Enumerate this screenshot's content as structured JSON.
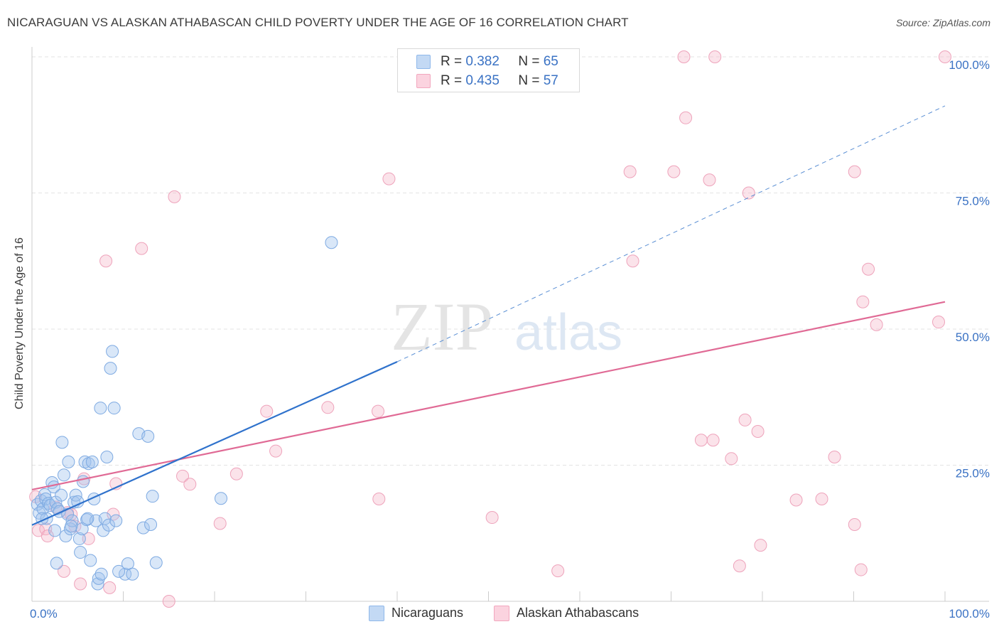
{
  "title": "NICARAGUAN VS ALASKAN ATHABASCAN CHILD POVERTY UNDER THE AGE OF 16 CORRELATION CHART",
  "source": "Source: ZipAtlas.com",
  "watermark": {
    "zip": "ZIP",
    "atlas": "atlas"
  },
  "legend_top": [
    {
      "r_label": "R =",
      "r_value": "0.382",
      "n_label": "N =",
      "n_value": "65"
    },
    {
      "r_label": "R =",
      "r_value": "0.435",
      "n_label": "N =",
      "n_value": "57"
    }
  ],
  "legend_bottom": [
    {
      "label": "Nicaraguans"
    },
    {
      "label": "Alaskan Athabascans"
    }
  ],
  "chart_data": {
    "type": "scatter",
    "title": "NICARAGUAN VS ALASKAN ATHABASCAN CHILD POVERTY UNDER THE AGE OF 16 CORRELATION CHART",
    "xlabel": "",
    "ylabel": "Child Poverty Under the Age of 16",
    "xlim": [
      0,
      100
    ],
    "ylim": [
      0,
      100
    ],
    "x_tick_labels": [
      "0.0%",
      "100.0%"
    ],
    "y_tick_labels": [
      "25.0%",
      "50.0%",
      "75.0%",
      "100.0%"
    ],
    "y_ticks": [
      25,
      50,
      75,
      100
    ],
    "colors": {
      "Nicaraguans": "#8fb8ea",
      "Alaskan Athabascans": "#f2a7be",
      "blue_line": "#2f72cc",
      "pink_line": "#e06a95"
    },
    "series": [
      {
        "name": "Nicaraguans",
        "R": 0.382,
        "N": 65,
        "trend": {
          "x0": 0,
          "y0": 14.0,
          "x1": 40,
          "y1": 44.0,
          "dash_to_x": 100,
          "dash_to_y": 91.0
        },
        "points": [
          [
            0.6,
            17.8
          ],
          [
            0.8,
            16.2
          ],
          [
            1.0,
            18.5
          ],
          [
            1.2,
            17.0
          ],
          [
            1.4,
            19.6
          ],
          [
            1.5,
            18.8
          ],
          [
            1.6,
            15.2
          ],
          [
            1.8,
            18.0
          ],
          [
            2.0,
            17.6
          ],
          [
            2.2,
            21.8
          ],
          [
            2.4,
            21.0
          ],
          [
            2.5,
            13.0
          ],
          [
            2.6,
            18.2
          ],
          [
            2.8,
            17.0
          ],
          [
            3.0,
            16.5
          ],
          [
            3.2,
            19.5
          ],
          [
            3.3,
            29.2
          ],
          [
            3.5,
            23.2
          ],
          [
            3.7,
            12.0
          ],
          [
            3.9,
            16.0
          ],
          [
            4.0,
            25.6
          ],
          [
            4.2,
            13.3
          ],
          [
            4.4,
            14.8
          ],
          [
            4.6,
            18.2
          ],
          [
            4.8,
            19.5
          ],
          [
            5.0,
            18.3
          ],
          [
            5.2,
            11.5
          ],
          [
            5.3,
            9.0
          ],
          [
            5.5,
            13.3
          ],
          [
            5.6,
            22.0
          ],
          [
            5.8,
            25.6
          ],
          [
            6.0,
            15.0
          ],
          [
            6.2,
            25.3
          ],
          [
            6.4,
            7.5
          ],
          [
            6.6,
            25.6
          ],
          [
            6.8,
            18.8
          ],
          [
            7.0,
            14.8
          ],
          [
            7.2,
            3.2
          ],
          [
            7.3,
            4.2
          ],
          [
            7.5,
            35.5
          ],
          [
            7.6,
            5.0
          ],
          [
            7.8,
            13.0
          ],
          [
            8.0,
            15.2
          ],
          [
            8.2,
            26.5
          ],
          [
            8.4,
            14.0
          ],
          [
            8.6,
            42.8
          ],
          [
            8.8,
            45.9
          ],
          [
            9.0,
            35.5
          ],
          [
            9.2,
            14.8
          ],
          [
            10.2,
            5.0
          ],
          [
            10.5,
            6.9
          ],
          [
            11.0,
            5.0
          ],
          [
            11.7,
            30.8
          ],
          [
            12.2,
            13.5
          ],
          [
            12.7,
            30.3
          ],
          [
            13.0,
            14.1
          ],
          [
            13.2,
            19.3
          ],
          [
            13.6,
            7.1
          ],
          [
            20.7,
            18.9
          ],
          [
            32.8,
            65.9
          ],
          [
            2.7,
            7.0
          ],
          [
            4.3,
            13.8
          ],
          [
            1.1,
            15.2
          ],
          [
            6.1,
            15.2
          ],
          [
            9.5,
            5.5
          ]
        ]
      },
      {
        "name": "Alaskan Athabascans",
        "R": 0.435,
        "N": 57,
        "trend": {
          "x0": 0,
          "y0": 20.5,
          "x1": 100,
          "y1": 55.0
        },
        "points": [
          [
            0.4,
            19.2
          ],
          [
            0.7,
            13.0
          ],
          [
            1.5,
            13.3
          ],
          [
            1.7,
            12.0
          ],
          [
            2.6,
            17.3
          ],
          [
            3.5,
            5.5
          ],
          [
            3.9,
            16.3
          ],
          [
            4.3,
            16.0
          ],
          [
            4.7,
            13.8
          ],
          [
            5.3,
            3.2
          ],
          [
            5.7,
            22.5
          ],
          [
            6.2,
            11.5
          ],
          [
            8.1,
            62.5
          ],
          [
            8.5,
            2.5
          ],
          [
            8.9,
            16.0
          ],
          [
            9.2,
            21.6
          ],
          [
            12.0,
            64.8
          ],
          [
            15.6,
            74.3
          ],
          [
            16.5,
            23.0
          ],
          [
            17.3,
            21.5
          ],
          [
            20.6,
            14.3
          ],
          [
            22.4,
            23.4
          ],
          [
            25.7,
            34.9
          ],
          [
            26.7,
            27.6
          ],
          [
            32.4,
            35.6
          ],
          [
            37.9,
            34.9
          ],
          [
            38.0,
            18.8
          ],
          [
            39.1,
            77.6
          ],
          [
            50.4,
            15.4
          ],
          [
            57.6,
            5.6
          ],
          [
            65.5,
            78.9
          ],
          [
            65.8,
            62.5
          ],
          [
            70.3,
            78.9
          ],
          [
            71.4,
            100.0
          ],
          [
            71.6,
            88.8
          ],
          [
            73.3,
            29.6
          ],
          [
            74.2,
            77.4
          ],
          [
            74.6,
            29.6
          ],
          [
            74.8,
            100.0
          ],
          [
            76.6,
            26.2
          ],
          [
            77.5,
            6.5
          ],
          [
            78.1,
            33.3
          ],
          [
            78.5,
            75.0
          ],
          [
            79.5,
            31.2
          ],
          [
            79.8,
            10.3
          ],
          [
            83.7,
            18.6
          ],
          [
            86.5,
            18.8
          ],
          [
            87.9,
            26.5
          ],
          [
            90.1,
            14.1
          ],
          [
            90.1,
            78.9
          ],
          [
            90.8,
            5.8
          ],
          [
            91.0,
            55.0
          ],
          [
            91.6,
            61.0
          ],
          [
            92.5,
            50.8
          ],
          [
            99.3,
            51.3
          ],
          [
            100.0,
            100.0
          ],
          [
            15.0,
            0.0
          ]
        ]
      }
    ]
  }
}
